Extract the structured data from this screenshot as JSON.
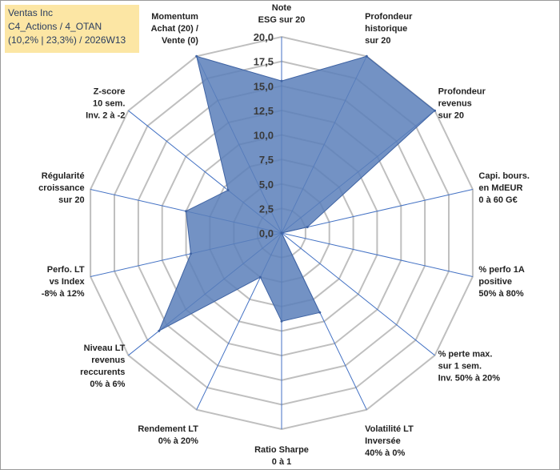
{
  "header": {
    "company": "Ventas Inc",
    "category": "C4_Actions / 4_OTAN",
    "stats": "(10,2% | 23,3%) / 2026W13"
  },
  "colors": {
    "fill": "#5b7fba",
    "stroke": "#3f63a3",
    "grid": "#bfbfbf",
    "spoke": "#4472c4",
    "title_bg": "#fce6a4"
  },
  "chart_data": {
    "type": "radar",
    "title": "Ventas Inc",
    "r_range": [
      0,
      20
    ],
    "ticks": [
      "0,0",
      "2,5",
      "5,0",
      "7,5",
      "10,0",
      "12,5",
      "15,0",
      "17,5",
      "20,0"
    ],
    "axes": [
      {
        "label": [
          "Note",
          "ESG sur 20"
        ],
        "value": 15.5
      },
      {
        "label": [
          "Profondeur",
          "historique",
          "sur 20"
        ],
        "value": 20
      },
      {
        "label": [
          "Profondeur",
          "revenus",
          "sur 20"
        ],
        "value": 20
      },
      {
        "label": [
          "Capi. bours.",
          "en MdEUR",
          "0 à 60 G€"
        ],
        "value": 2.7
      },
      {
        "label": [
          "% perfo 1A",
          "positive",
          "50% à 80%"
        ],
        "value": 0
      },
      {
        "label": [
          "% perte max.",
          "sur 1 sem.",
          "Inv. 50% à 20%"
        ],
        "value": 0
      },
      {
        "label": [
          "Volatilité LT",
          "Inversée",
          "40% à 0%"
        ],
        "value": 9
      },
      {
        "label": [
          "Ratio Sharpe",
          "0 à 1"
        ],
        "value": 9
      },
      {
        "label": [
          "Rendement LT",
          "0% à 20%"
        ],
        "value": 5
      },
      {
        "label": [
          "Niveau LT",
          "revenus",
          "reccurents",
          "0% à 6%"
        ],
        "value": 16
      },
      {
        "label": [
          "Perfo. LT",
          "vs Index",
          "-8% à 12%"
        ],
        "value": 9.5
      },
      {
        "label": [
          "Régularité",
          "croissance",
          "sur 20"
        ],
        "value": 10
      },
      {
        "label": [
          "Z-score",
          "10 sem.",
          "Inv. 2 à -2"
        ],
        "value": 7
      },
      {
        "label": [
          "Momentum",
          "Achat (20) /",
          "Vente (0)"
        ],
        "value": 20
      }
    ]
  }
}
